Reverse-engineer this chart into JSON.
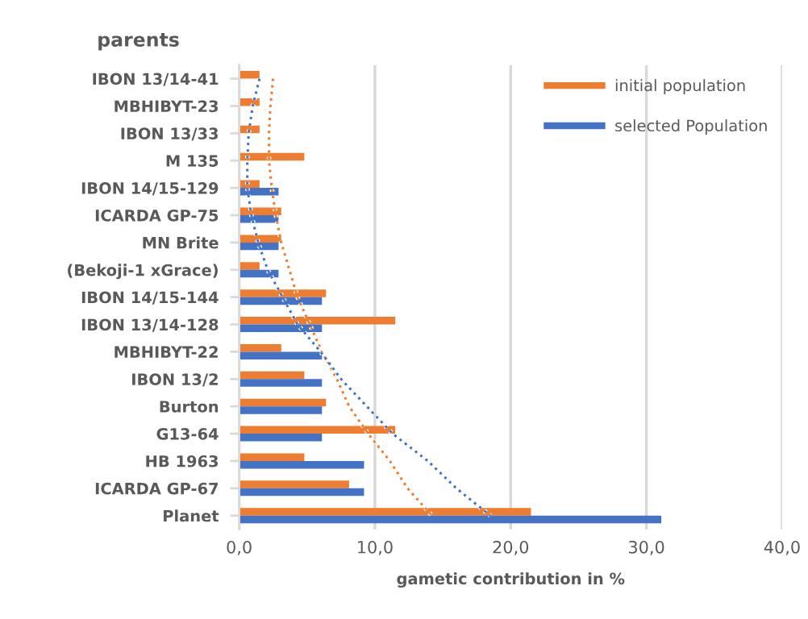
{
  "chart_data": {
    "type": "bar",
    "orientation": "horizontal",
    "title": "parents",
    "xlabel": "gametic contribution in %",
    "categories": [
      "IBON 13/14-41",
      "MBHIBYT-23",
      "IBON 13/33",
      "M 135",
      "IBON 14/15-129",
      "ICARDA GP-75",
      "MN Brite",
      "(Bekoji-1 xGrace)",
      "IBON 14/15-144",
      "IBON 13/14-128",
      "MBHIBYT-22",
      "IBON 13/2",
      "Burton",
      "G13-64",
      "HB 1963",
      "ICARDA GP-67",
      "Planet"
    ],
    "series": [
      {
        "name": "initial population",
        "color": "#ed7d31",
        "values": [
          1.5,
          1.5,
          1.5,
          4.8,
          1.5,
          3.1,
          3.1,
          1.5,
          6.4,
          11.5,
          3.1,
          4.8,
          6.4,
          11.5,
          4.8,
          8.1,
          21.5
        ]
      },
      {
        "name": "selected Population",
        "color": "#4472c4",
        "values": [
          null,
          null,
          null,
          null,
          2.9,
          2.9,
          2.9,
          2.9,
          6.1,
          6.1,
          6.1,
          6.1,
          6.1,
          6.1,
          9.2,
          9.2,
          31.1
        ]
      },
      {
        "type": "line",
        "line_style": "dotted",
        "color": "#ed7d31",
        "values": [
          2.5,
          2.3,
          2.2,
          2.2,
          2.4,
          2.7,
          3.1,
          3.7,
          4.3,
          5.2,
          6.1,
          7.2,
          8.1,
          9.5,
          11.1,
          12.4,
          14.2
        ]
      },
      {
        "type": "line",
        "line_style": "dotted",
        "color": "#4472c4",
        "values": [
          1.5,
          1.0,
          0.7,
          0.6,
          0.6,
          0.9,
          1.4,
          2.1,
          3.2,
          4.3,
          6.0,
          7.5,
          9.4,
          11.3,
          13.9,
          16.0,
          18.5
        ]
      }
    ],
    "xlim": [
      0,
      40
    ],
    "xticks": [
      {
        "value": 0,
        "label": "0,0"
      },
      {
        "value": 10,
        "label": "10,0"
      },
      {
        "value": 20,
        "label": "20,0"
      },
      {
        "value": 30,
        "label": "30,0"
      },
      {
        "value": 40,
        "label": "40,0"
      }
    ],
    "grid": "x",
    "legend": "top right"
  }
}
